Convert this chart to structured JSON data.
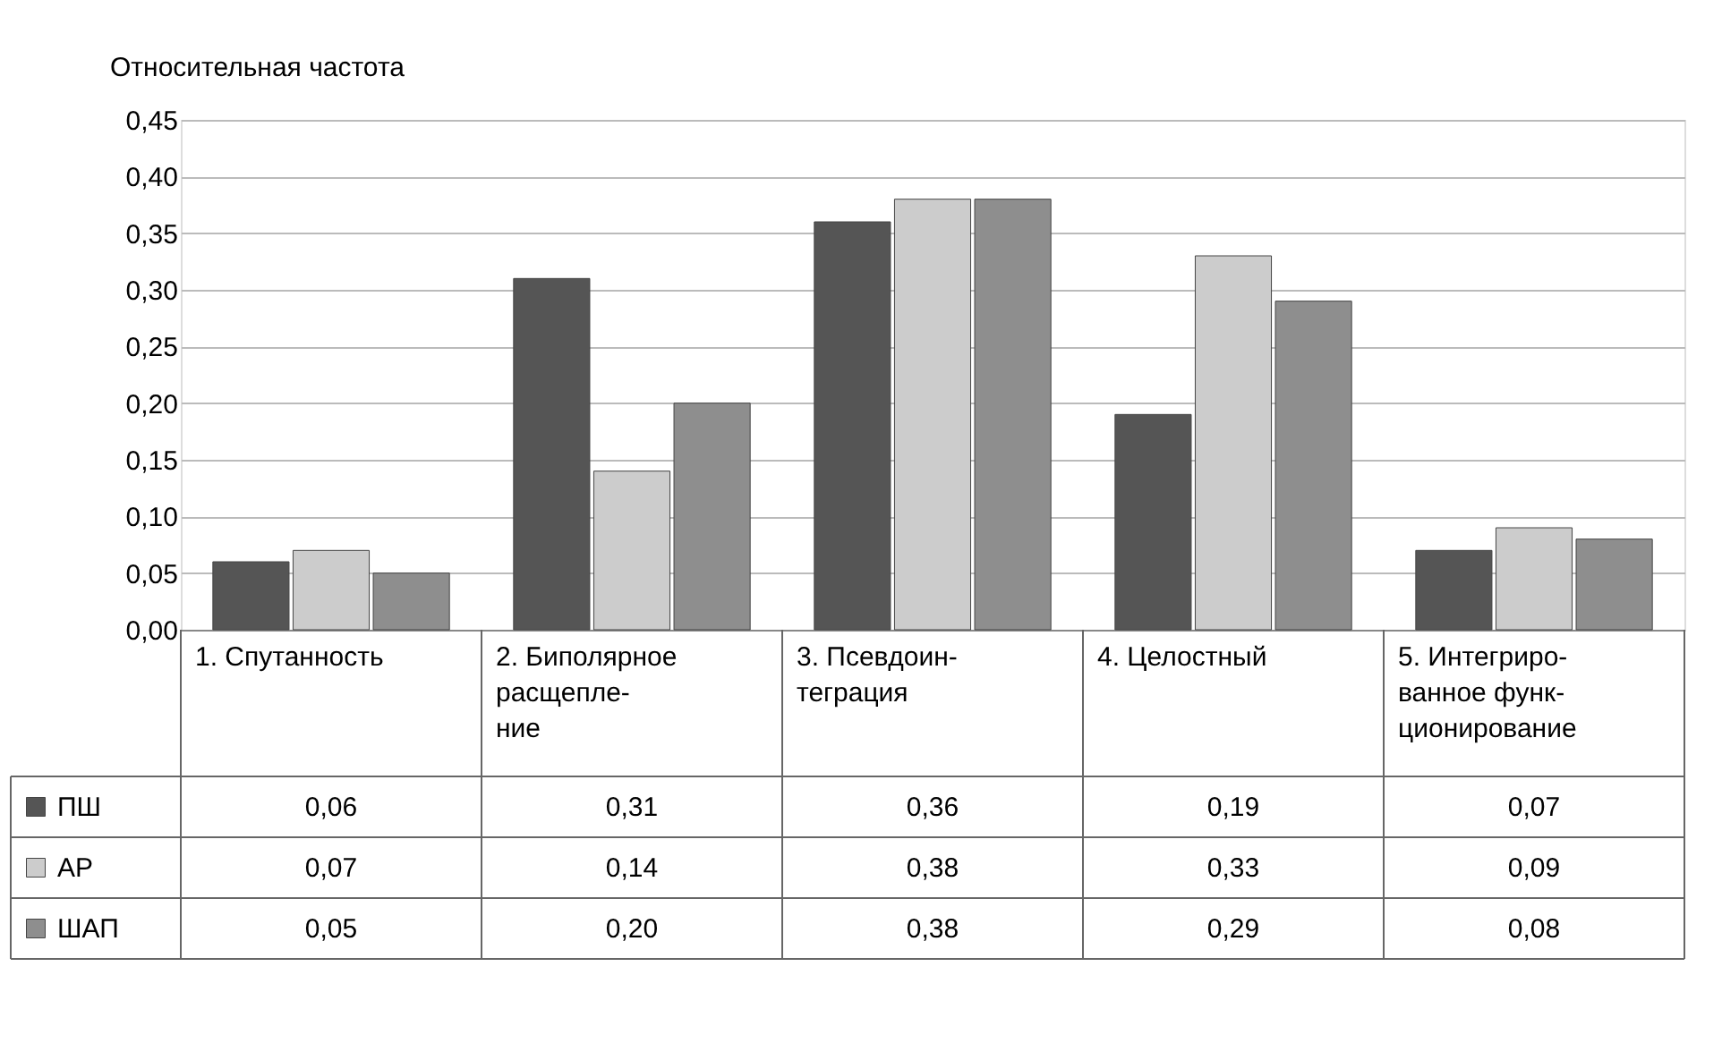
{
  "chart_data": {
    "type": "bar",
    "ylabel": "Относительная частота",
    "categories": [
      "1. Спутанность",
      "2. Биполярное расщепле- ние",
      "3. Псевдоин- теграция",
      "4. Целостный",
      "5. Интегриро- ванное функ- ционирование"
    ],
    "series": [
      {
        "name": "ПШ",
        "color": "#555555",
        "values": [
          0.06,
          0.31,
          0.36,
          0.19,
          0.07
        ],
        "value_labels": [
          "0,06",
          "0,31",
          "0,36",
          "0,19",
          "0,07"
        ]
      },
      {
        "name": "АР",
        "color": "#cccccc",
        "values": [
          0.07,
          0.14,
          0.38,
          0.33,
          0.09
        ],
        "value_labels": [
          "0,07",
          "0,14",
          "0,38",
          "0,33",
          "0,09"
        ]
      },
      {
        "name": "ШАП",
        "color": "#8e8e8e",
        "values": [
          0.05,
          0.2,
          0.38,
          0.29,
          0.08
        ],
        "value_labels": [
          "0,05",
          "0,20",
          "0,38",
          "0,29",
          "0,08"
        ]
      }
    ],
    "ylim": [
      0,
      0.45
    ],
    "yticks": [
      {
        "value": 0,
        "label": "0,00"
      },
      {
        "value": 0.05,
        "label": "0,05"
      },
      {
        "value": 0.1,
        "label": "0,10"
      },
      {
        "value": 0.15,
        "label": "0,15"
      },
      {
        "value": 0.2,
        "label": "0,20"
      },
      {
        "value": 0.25,
        "label": "0,25"
      },
      {
        "value": 0.3,
        "label": "0,30"
      },
      {
        "value": 0.35,
        "label": "0,35"
      },
      {
        "value": 0.4,
        "label": "0,40"
      },
      {
        "value": 0.45,
        "label": "0,45"
      }
    ],
    "grid": "y",
    "legend": "bottom"
  }
}
